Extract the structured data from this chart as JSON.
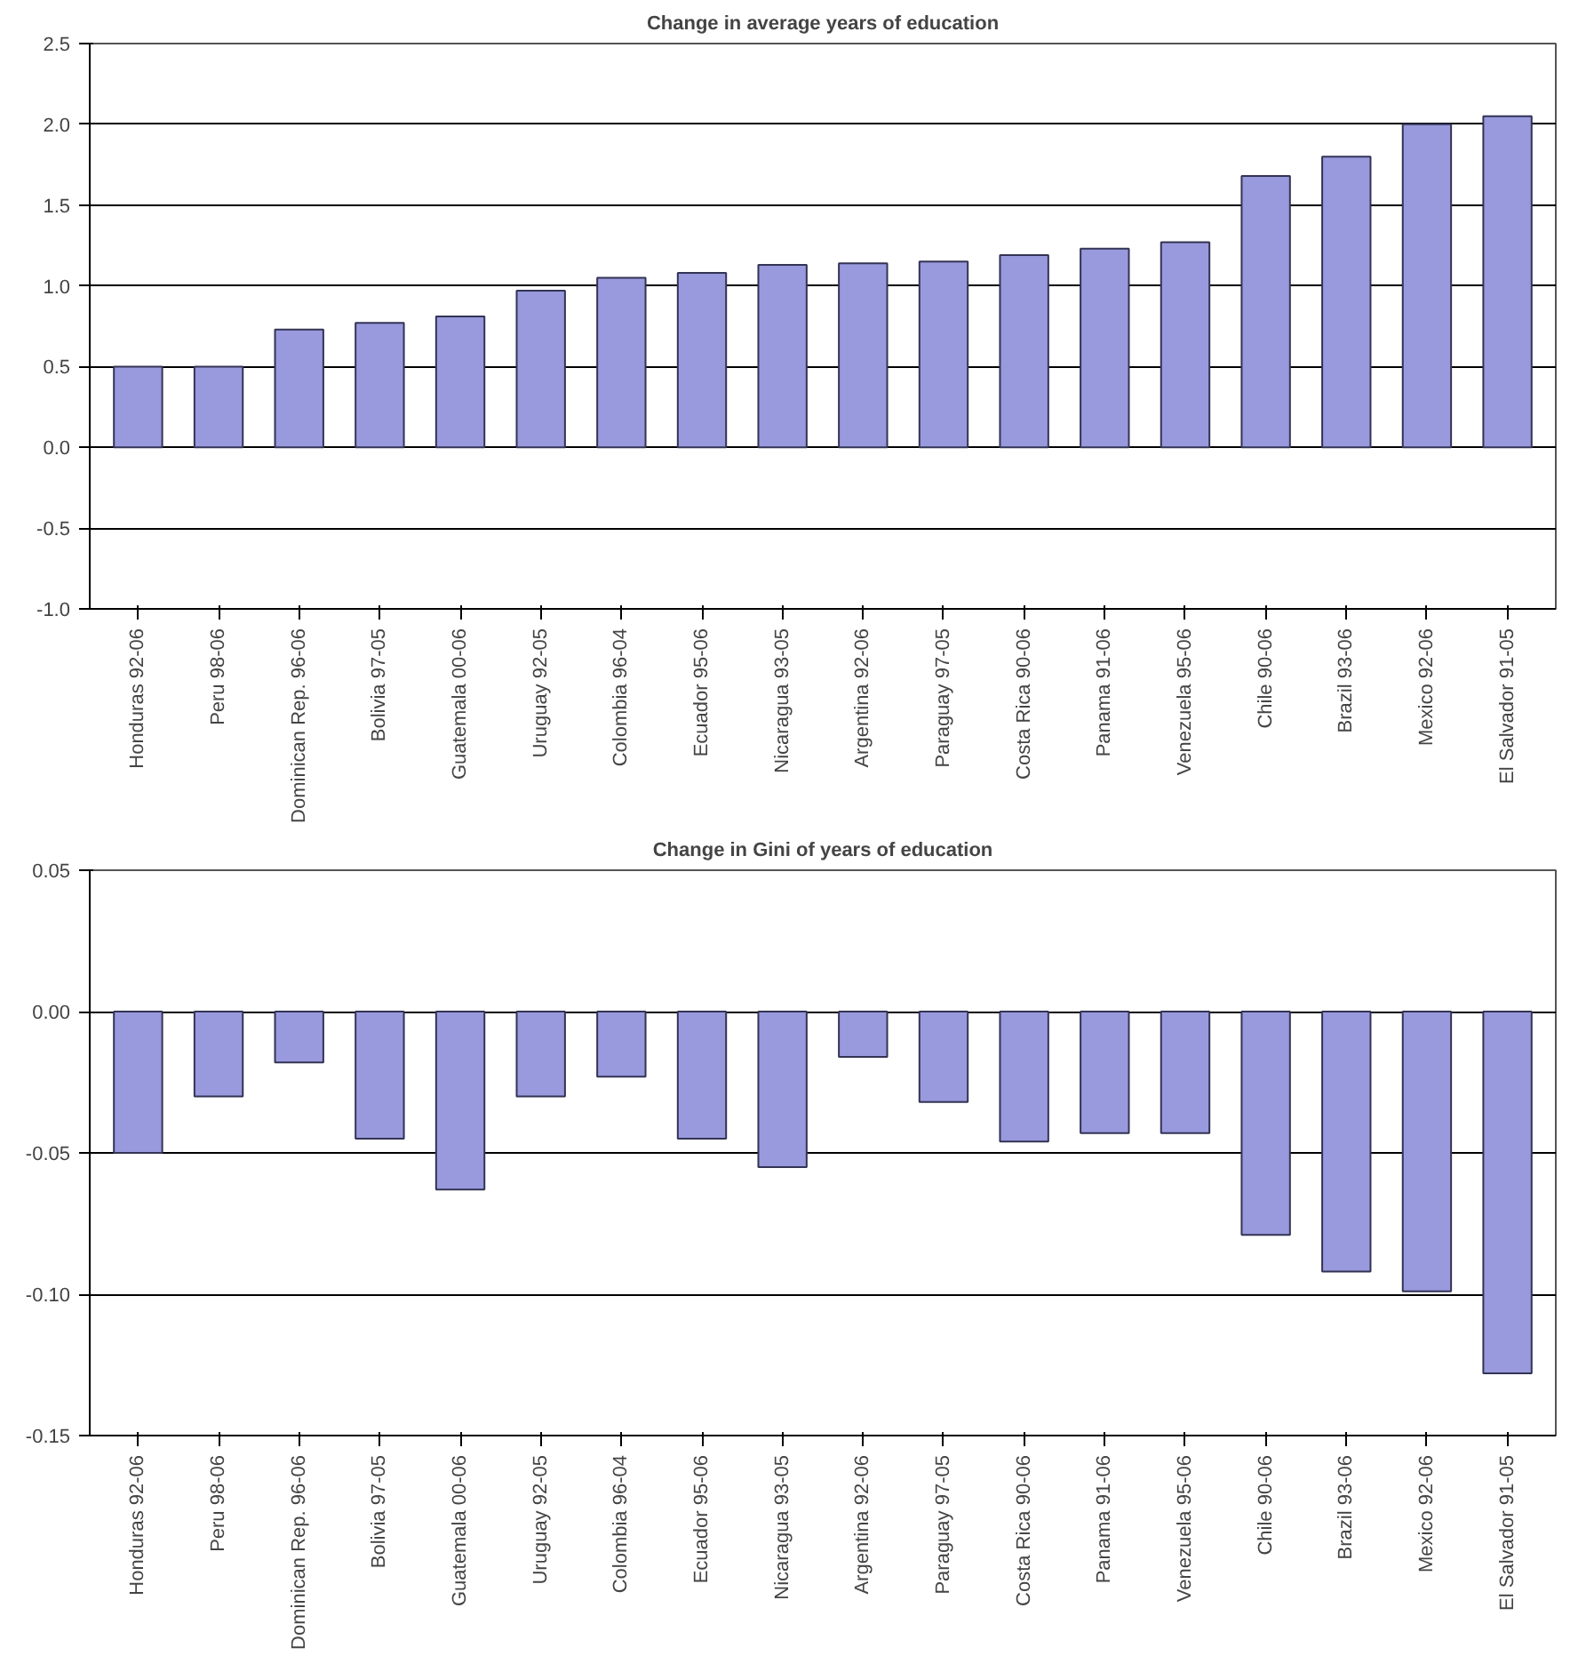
{
  "chart_data": [
    {
      "type": "bar",
      "title": "Change in average years of education",
      "categories": [
        "Honduras 92-06",
        "Peru 98-06",
        "Dominican Rep. 96-06",
        "Bolivia 97-05",
        "Guatemala 00-06",
        "Uruguay 92-05",
        "Colombia 96-04",
        "Ecuador 95-06",
        "Nicaragua 93-05",
        "Argentina 92-06",
        "Paraguay 97-05",
        "Costa Rica 90-06",
        "Panama 91-06",
        "Venezuela 95-06",
        "Chile 90-06",
        "Brazil 93-06",
        "Mexico 92-06",
        "El Salvador 91-05"
      ],
      "values": [
        0.5,
        0.5,
        0.73,
        0.77,
        0.81,
        0.97,
        1.05,
        1.08,
        1.13,
        1.14,
        1.15,
        1.19,
        1.23,
        1.27,
        1.68,
        1.8,
        2.0,
        2.05
      ],
      "color": "#9999dd",
      "ylim": [
        -1.0,
        2.5
      ],
      "yticks": [
        {
          "value": -1.0,
          "label": "-1.0"
        },
        {
          "value": -0.5,
          "label": "-0.5"
        },
        {
          "value": 0,
          "label": "0.0"
        },
        {
          "value": 0.5,
          "label": "0.5"
        },
        {
          "value": 1.0,
          "label": "1.0"
        },
        {
          "value": 1.5,
          "label": "1.5"
        },
        {
          "value": 2.0,
          "label": "2.0"
        },
        {
          "value": 2.5,
          "label": "2.5"
        }
      ],
      "grid": "y"
    },
    {
      "type": "bar",
      "title": "Change in Gini of years of education",
      "categories": [
        "Honduras 92-06",
        "Peru 98-06",
        "Dominican Rep. 96-06",
        "Bolivia 97-05",
        "Guatemala 00-06",
        "Uruguay 92-05",
        "Colombia 96-04",
        "Ecuador 95-06",
        "Nicaragua 93-05",
        "Argentina 92-06",
        "Paraguay 97-05",
        "Costa Rica 90-06",
        "Panama 91-06",
        "Venezuela 95-06",
        "Chile 90-06",
        "Brazil 93-06",
        "Mexico 92-06",
        "El Salvador 91-05"
      ],
      "values": [
        -0.05,
        -0.03,
        -0.018,
        -0.045,
        -0.063,
        -0.03,
        -0.023,
        -0.045,
        -0.055,
        -0.016,
        -0.032,
        -0.046,
        -0.043,
        -0.043,
        -0.079,
        -0.092,
        -0.099,
        -0.128
      ],
      "color": "#9999dd",
      "ylim": [
        -0.15,
        0.05
      ],
      "yticks": [
        {
          "value": -0.15,
          "label": "-0.15"
        },
        {
          "value": -0.1,
          "label": "-0.10"
        },
        {
          "value": -0.05,
          "label": "-0.05"
        },
        {
          "value": 0,
          "label": "0.00"
        },
        {
          "value": 0.05,
          "label": "0.05"
        }
      ],
      "grid": "y"
    }
  ]
}
